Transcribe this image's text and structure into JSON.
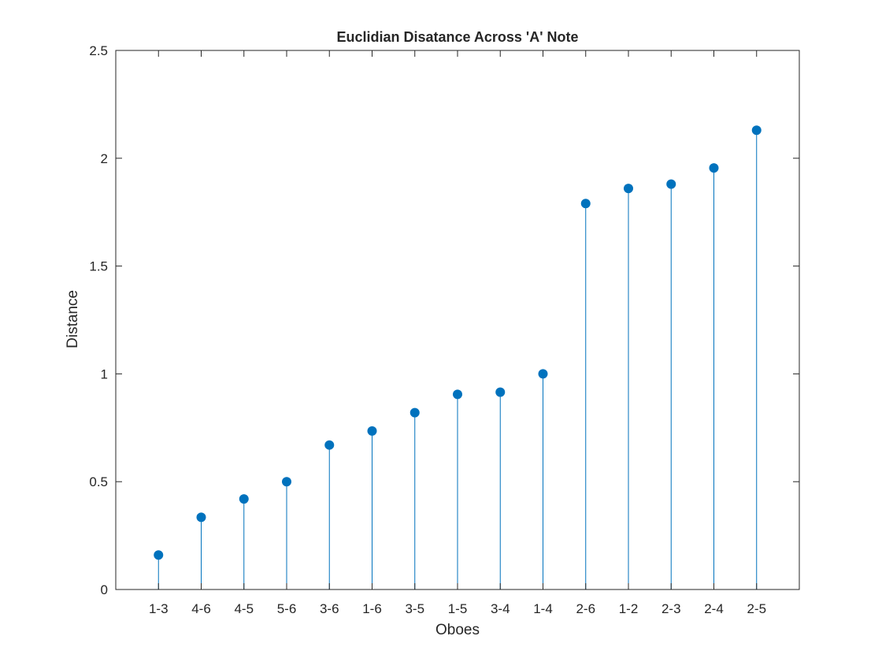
{
  "chart_data": {
    "type": "stem",
    "title": "Euclidian Disatance Across 'A' Note",
    "xlabel": "Oboes",
    "ylabel": "Distance",
    "categories": [
      "1-3",
      "4-6",
      "4-5",
      "5-6",
      "3-6",
      "1-6",
      "3-5",
      "1-5",
      "3-4",
      "1-4",
      "2-6",
      "1-2",
      "2-3",
      "2-4",
      "2-5"
    ],
    "values": [
      0.16,
      0.335,
      0.42,
      0.5,
      0.67,
      0.735,
      0.82,
      0.905,
      0.915,
      1.0,
      1.79,
      1.86,
      1.88,
      1.955,
      2.13
    ],
    "ylim": [
      0,
      2.5
    ],
    "yticks": [
      0,
      0.5,
      1,
      1.5,
      2,
      2.5
    ],
    "ytick_labels": [
      "0",
      "0.5",
      "1",
      "1.5",
      "2",
      "2.5"
    ],
    "grid": false,
    "color": "#0072bd"
  }
}
